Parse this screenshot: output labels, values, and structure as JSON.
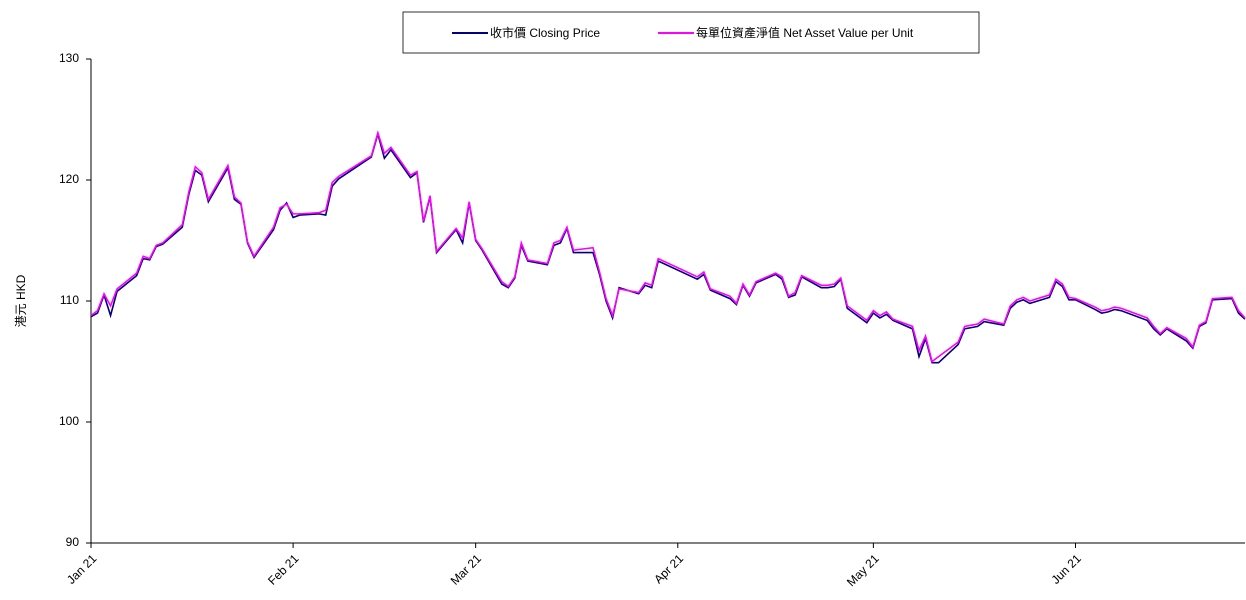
{
  "chart_data": {
    "type": "line",
    "y_label": "港元 HKD",
    "xlim": [
      0,
      177
    ],
    "xticks": [
      {
        "value": 0,
        "label": "Jan 21"
      },
      {
        "value": 31,
        "label": "Feb 21"
      },
      {
        "value": 59,
        "label": "Mar 21"
      },
      {
        "value": 90,
        "label": "Apr 21"
      },
      {
        "value": 120,
        "label": "May 21"
      },
      {
        "value": 151,
        "label": "Jun 21"
      }
    ],
    "ylim": [
      90,
      130
    ],
    "yticks": [
      90,
      100,
      110,
      120,
      130
    ],
    "grid": false,
    "legend": "top",
    "x": [
      0,
      1,
      2,
      3,
      4,
      7,
      8,
      9,
      10,
      11,
      14,
      15,
      16,
      17,
      18,
      21,
      22,
      23,
      24,
      25,
      28,
      29,
      30,
      31,
      32,
      35,
      36,
      37,
      38,
      43,
      44,
      45,
      46,
      49,
      50,
      51,
      52,
      53,
      56,
      57,
      58,
      59,
      60,
      63,
      64,
      65,
      66,
      67,
      70,
      71,
      72,
      73,
      74,
      77,
      78,
      79,
      80,
      81,
      84,
      85,
      86,
      87,
      93,
      94,
      95,
      98,
      99,
      100,
      101,
      102,
      105,
      106,
      107,
      108,
      109,
      112,
      113,
      114,
      115,
      116,
      119,
      120,
      121,
      122,
      123,
      126,
      127,
      128,
      129,
      130,
      133,
      134,
      135,
      136,
      137,
      140,
      141,
      142,
      143,
      144,
      147,
      148,
      149,
      150,
      151,
      154,
      155,
      156,
      157,
      158,
      162,
      163,
      164,
      165,
      168,
      169,
      170,
      171,
      172,
      175,
      176,
      177
    ],
    "series": [
      {
        "name": "收市價 Closing Price",
        "color": "#000080",
        "values": [
          108.7,
          109.0,
          110.5,
          108.8,
          110.8,
          112.1,
          113.5,
          113.4,
          114.5,
          114.7,
          116.1,
          118.8,
          120.8,
          120.4,
          118.2,
          121.0,
          118.4,
          118.0,
          114.8,
          113.6,
          115.9,
          117.5,
          118.1,
          116.9,
          117.1,
          117.2,
          117.1,
          119.5,
          120.1,
          121.9,
          123.8,
          121.8,
          122.5,
          120.2,
          120.6,
          116.5,
          118.6,
          114.0,
          115.9,
          114.8,
          118.1,
          115.0,
          114.2,
          111.4,
          111.1,
          111.9,
          114.6,
          113.3,
          113.0,
          114.6,
          114.8,
          116.0,
          114.0,
          114.0,
          112.2,
          110.0,
          108.6,
          111.1,
          110.6,
          111.3,
          111.1,
          113.3,
          111.8,
          112.2,
          110.9,
          110.2,
          109.7,
          111.3,
          110.4,
          111.5,
          112.2,
          111.8,
          110.3,
          110.5,
          112.0,
          111.1,
          111.1,
          111.2,
          111.8,
          109.4,
          108.2,
          109.0,
          108.6,
          108.9,
          108.4,
          107.7,
          105.4,
          106.9,
          104.9,
          104.9,
          106.4,
          107.7,
          107.8,
          107.9,
          108.3,
          108.0,
          109.4,
          109.9,
          110.1,
          109.8,
          110.3,
          111.6,
          111.2,
          110.1,
          110.1,
          109.3,
          109.0,
          109.1,
          109.3,
          109.2,
          108.4,
          107.7,
          107.2,
          107.7,
          106.7,
          106.1,
          107.9,
          108.2,
          110.1,
          110.2,
          109.0,
          108.5
        ]
      },
      {
        "name": "每單位資產淨值 Net Asset Value per Unit",
        "color": "#ff00ff",
        "values": [
          108.8,
          109.2,
          110.6,
          109.6,
          111.0,
          112.3,
          113.7,
          113.5,
          114.6,
          114.8,
          116.3,
          119.0,
          121.1,
          120.6,
          118.4,
          121.2,
          118.6,
          118.1,
          114.9,
          113.7,
          116.1,
          117.7,
          118.0,
          117.2,
          117.2,
          117.3,
          117.5,
          119.8,
          120.3,
          122.0,
          123.9,
          122.2,
          122.7,
          120.4,
          120.7,
          116.6,
          118.7,
          114.1,
          116.0,
          115.2,
          118.2,
          115.1,
          114.3,
          111.6,
          111.2,
          112.0,
          114.8,
          113.4,
          113.1,
          114.8,
          115.0,
          116.1,
          114.2,
          114.4,
          112.4,
          110.2,
          108.8,
          111.0,
          110.7,
          111.5,
          111.3,
          113.5,
          112.0,
          112.4,
          111.0,
          110.4,
          109.8,
          111.4,
          110.5,
          111.6,
          112.3,
          112.0,
          110.4,
          110.7,
          112.1,
          111.3,
          111.3,
          111.4,
          111.9,
          109.6,
          108.4,
          109.2,
          108.8,
          109.1,
          108.5,
          107.9,
          105.9,
          107.1,
          105.0,
          105.4,
          106.6,
          107.9,
          108.0,
          108.1,
          108.5,
          108.1,
          109.6,
          110.1,
          110.3,
          110.0,
          110.5,
          111.8,
          111.4,
          110.3,
          110.2,
          109.5,
          109.2,
          109.3,
          109.5,
          109.4,
          108.6,
          107.9,
          107.3,
          107.8,
          106.9,
          106.2,
          108.0,
          108.3,
          110.2,
          110.3,
          109.2,
          108.6
        ]
      }
    ]
  }
}
